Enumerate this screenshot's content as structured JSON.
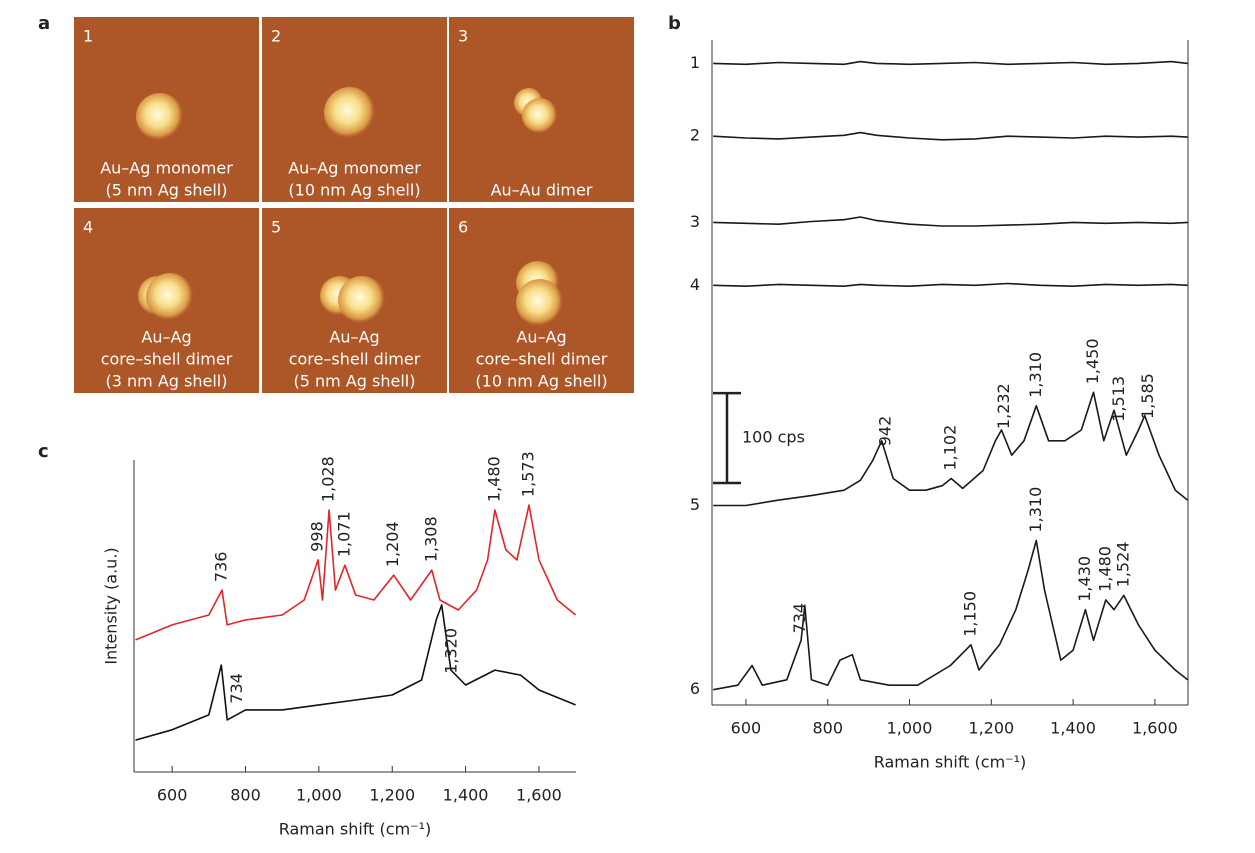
{
  "panel_a": {
    "label": "a",
    "images": [
      {
        "number": "1",
        "caption": [
          "Au–Ag monomer",
          "(5 nm Ag shell)"
        ]
      },
      {
        "number": "2",
        "caption": [
          "Au–Ag monomer",
          "(10 nm Ag shell)"
        ]
      },
      {
        "number": "3",
        "caption": [
          "Au–Au dimer"
        ]
      },
      {
        "number": "4",
        "caption": [
          "Au–Ag",
          "core–shell dimer",
          "(3 nm Ag shell)"
        ]
      },
      {
        "number": "5",
        "caption": [
          "Au–Ag",
          "core–shell dimer",
          "(5 nm Ag shell)"
        ]
      },
      {
        "number": "6",
        "caption": [
          "Au–Ag",
          "core–shell dimer",
          "(10 nm Ag shell)"
        ]
      }
    ]
  },
  "chart_data": [
    {
      "type": "line",
      "panel_label": "b",
      "xlabel": "Raman shift (cm⁻¹)",
      "xlim": [
        517,
        1681
      ],
      "ylim": [
        0,
        740
      ],
      "xticks": [
        600,
        800,
        {
          "value": 1000,
          "label": "1,000"
        },
        {
          "value": 1200,
          "label": "1,200"
        },
        {
          "value": 1400,
          "label": "1,400"
        },
        {
          "value": 1600,
          "label": "1,600"
        }
      ],
      "scale_bar": {
        "value": 100,
        "label": "100 cps"
      },
      "series": [
        {
          "name": "1",
          "color": "#1a1a1a",
          "x": [
            520,
            600,
            680,
            760,
            840,
            880,
            920,
            1000,
            1080,
            1160,
            1240,
            1320,
            1400,
            1480,
            1560,
            1640,
            1680
          ],
          "values": [
            714,
            713,
            715,
            714,
            713,
            716,
            714,
            713,
            714,
            715,
            713,
            714,
            715,
            713,
            714,
            716,
            714
          ]
        },
        {
          "name": "2",
          "color": "#1a1a1a",
          "x": [
            520,
            600,
            680,
            760,
            840,
            880,
            920,
            1000,
            1080,
            1160,
            1240,
            1320,
            1400,
            1480,
            1560,
            1640,
            1680
          ],
          "values": [
            633,
            631,
            630,
            632,
            634,
            637,
            634,
            631,
            629,
            630,
            633,
            632,
            631,
            633,
            632,
            633,
            632
          ]
        },
        {
          "name": "3",
          "color": "#1a1a1a",
          "x": [
            520,
            600,
            680,
            760,
            840,
            880,
            920,
            1000,
            1080,
            1160,
            1240,
            1320,
            1400,
            1480,
            1560,
            1640,
            1680
          ],
          "values": [
            537,
            536,
            535,
            538,
            540,
            543,
            539,
            535,
            533,
            533,
            534,
            535,
            537,
            536,
            537,
            536,
            537
          ]
        },
        {
          "name": "4",
          "color": "#1a1a1a",
          "x": [
            520,
            600,
            680,
            760,
            840,
            880,
            920,
            1000,
            1080,
            1160,
            1240,
            1320,
            1400,
            1480,
            1560,
            1640,
            1680
          ],
          "values": [
            467,
            466,
            468,
            467,
            466,
            468,
            467,
            466,
            468,
            467,
            469,
            467,
            466,
            468,
            467,
            468,
            467
          ]
        },
        {
          "name": "5",
          "color": "#1a1a1a",
          "x": [
            520,
            600,
            680,
            760,
            840,
            880,
            910,
            932,
            960,
            1000,
            1040,
            1080,
            1102,
            1130,
            1180,
            1210,
            1225,
            1250,
            1280,
            1310,
            1340,
            1380,
            1420,
            1450,
            1475,
            1500,
            1530,
            1560,
            1575,
            1610,
            1650,
            1680
          ],
          "values": [
            222,
            222,
            228,
            233,
            239,
            250,
            272,
            294,
            252,
            239,
            239,
            244,
            252,
            241,
            261,
            294,
            306,
            278,
            294,
            333,
            294,
            294,
            306,
            348,
            294,
            328,
            278,
            306,
            322,
            278,
            239,
            228
          ],
          "peak_labels": [
            {
              "value": 942,
              "label": "942"
            },
            {
              "value": 1102,
              "label": "1,102"
            },
            {
              "value": 1232,
              "label": "1,232"
            },
            {
              "value": 1310,
              "label": "1,310"
            },
            {
              "value": 1450,
              "label": "1,450"
            },
            {
              "value": 1513,
              "label": "1,513"
            },
            {
              "value": 1585,
              "label": "1,585"
            }
          ]
        },
        {
          "name": "6",
          "color": "#1a1a1a",
          "x": [
            520,
            580,
            615,
            640,
            700,
            735,
            744,
            760,
            800,
            830,
            860,
            880,
            950,
            1020,
            1100,
            1150,
            1170,
            1220,
            1260,
            1290,
            1310,
            1330,
            1370,
            1400,
            1430,
            1450,
            1480,
            1500,
            1524,
            1560,
            1600,
            1650,
            1680
          ],
          "values": [
            17,
            22,
            44,
            22,
            28,
            72,
            111,
            28,
            22,
            50,
            56,
            28,
            22,
            22,
            44,
            67,
            39,
            67,
            106,
            150,
            183,
            128,
            50,
            61,
            106,
            72,
            117,
            106,
            122,
            89,
            61,
            39,
            28
          ],
          "peak_labels": [
            {
              "value": 734,
              "label": "734"
            },
            {
              "value": 1150,
              "label": "1,150"
            },
            {
              "value": 1310,
              "label": "1,310"
            },
            {
              "value": 1430,
              "label": "1,430"
            },
            {
              "value": 1480,
              "label": "1,480"
            },
            {
              "value": 1524,
              "label": "1,524"
            }
          ]
        }
      ]
    },
    {
      "type": "line",
      "panel_label": "c",
      "xlabel": "Raman shift (cm⁻¹)",
      "ylabel": "Intensity (a.u.)",
      "xlim": [
        496,
        1701
      ],
      "ylim": [
        0,
        100
      ],
      "xticks": [
        600,
        800,
        {
          "value": 1000,
          "label": "1,000"
        },
        {
          "value": 1200,
          "label": "1,200"
        },
        {
          "value": 1400,
          "label": "1,400"
        },
        {
          "value": 1600,
          "label": "1,600"
        }
      ],
      "series": [
        {
          "color": "#e0262b",
          "label_position": "above",
          "x": [
            500,
            600,
            700,
            736,
            750,
            800,
            900,
            960,
            998,
            1010,
            1028,
            1045,
            1071,
            1100,
            1150,
            1204,
            1250,
            1308,
            1330,
            1380,
            1430,
            1460,
            1480,
            1510,
            1540,
            1573,
            1600,
            1650,
            1700
          ],
          "values": [
            39.8,
            44.3,
            47.3,
            54.8,
            44.3,
            45.8,
            47.3,
            51.8,
            63.9,
            51.8,
            78.9,
            54.8,
            62.3,
            53.3,
            51.8,
            59.3,
            51.8,
            60.8,
            51.8,
            48.8,
            54.8,
            63.9,
            78.9,
            66.9,
            63.9,
            80.4,
            63.9,
            51.8,
            47.3
          ],
          "peak_labels": [
            {
              "value": 736,
              "label": "736"
            },
            {
              "value": 998,
              "label": "998"
            },
            {
              "value": 1028,
              "label": "1,028"
            },
            {
              "value": 1071,
              "label": "1,071"
            },
            {
              "value": 1204,
              "label": "1,204"
            },
            {
              "value": 1308,
              "label": "1,308"
            },
            {
              "value": 1480,
              "label": "1,480"
            },
            {
              "value": 1573,
              "label": "1,573"
            }
          ]
        },
        {
          "color": "#111111",
          "label_position": "right",
          "x": [
            500,
            600,
            700,
            734,
            750,
            800,
            900,
            1000,
            1100,
            1200,
            1280,
            1320,
            1335,
            1360,
            1400,
            1480,
            1550,
            1600,
            1700
          ],
          "values": [
            9.6,
            12.7,
            17.2,
            32.2,
            15.7,
            18.7,
            18.7,
            20.2,
            21.7,
            23.2,
            27.7,
            45.8,
            50.3,
            30.7,
            26.2,
            30.7,
            29.2,
            24.7,
            20.2
          ],
          "peak_labels": [
            {
              "value": 734,
              "label": "734"
            },
            {
              "value": 1320,
              "label": "1,320"
            }
          ]
        }
      ]
    }
  ]
}
